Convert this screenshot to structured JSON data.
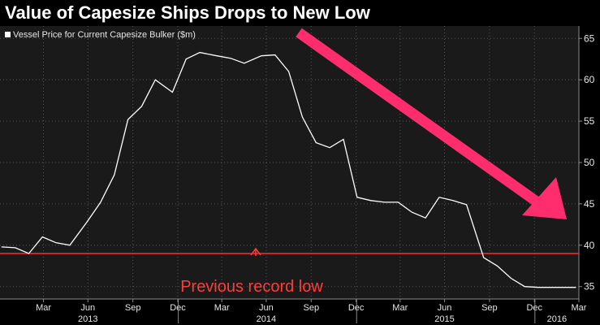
{
  "title": "Value of Capesize Ships Drops to New Low",
  "colors": {
    "background": "#000000",
    "plot_bg": "#1a1a1a",
    "line": "#ffffff",
    "record_line": "#ff2a2a",
    "arrow": "#ff2d6e",
    "text": "#e6e6e6"
  },
  "chart_data": {
    "type": "line",
    "title": "Value of Capesize Ships Drops to New Low",
    "legend": "Vessel Price for Current Capesize Bulker ($m)",
    "legend_position": "top-left",
    "ylim": [
      33.5,
      66.5
    ],
    "yticks": [
      35,
      40,
      45,
      50,
      55,
      60,
      65
    ],
    "y_axis_side": "right",
    "xlim": [
      "2013-01-01",
      "2016-03-31"
    ],
    "xticks": [
      {
        "label": "Mar",
        "date": "2013-03-31"
      },
      {
        "label": "Jun",
        "date": "2013-06-30"
      },
      {
        "label": "Sep",
        "date": "2013-09-30"
      },
      {
        "label": "Dec",
        "date": "2013-12-31"
      },
      {
        "label": "Mar",
        "date": "2014-03-31"
      },
      {
        "label": "Jun",
        "date": "2014-06-30"
      },
      {
        "label": "Sep",
        "date": "2014-09-30"
      },
      {
        "label": "Dec",
        "date": "2014-12-31"
      },
      {
        "label": "Mar",
        "date": "2015-03-31"
      },
      {
        "label": "Jun",
        "date": "2015-06-30"
      },
      {
        "label": "Sep",
        "date": "2015-09-30"
      },
      {
        "label": "Dec",
        "date": "2015-12-31"
      },
      {
        "label": "Mar",
        "date": "2016-03-31"
      }
    ],
    "years": [
      {
        "label": "2013",
        "date": "2013-06-30"
      },
      {
        "label": "2014",
        "date": "2014-06-30"
      },
      {
        "label": "2015",
        "date": "2015-06-30"
      },
      {
        "label": "2016",
        "date": "2016-02-15"
      }
    ],
    "series": [
      {
        "name": "Vessel Price for Current Capesize Bulker ($m)",
        "x": [
          "2013-01-04",
          "2013-02-01",
          "2013-03-01",
          "2013-03-29",
          "2013-04-26",
          "2013-05-24",
          "2013-06-28",
          "2013-07-26",
          "2013-08-23",
          "2013-09-20",
          "2013-10-18",
          "2013-11-15",
          "2013-12-20",
          "2014-01-17",
          "2014-02-14",
          "2014-03-21",
          "2014-04-18",
          "2014-05-16",
          "2014-06-20",
          "2014-07-18",
          "2014-08-15",
          "2014-09-12",
          "2014-10-10",
          "2014-11-07",
          "2014-12-05",
          "2015-01-02",
          "2015-01-30",
          "2015-02-27",
          "2015-03-27",
          "2015-04-24",
          "2015-05-22",
          "2015-06-19",
          "2015-07-17",
          "2015-08-14",
          "2015-09-18",
          "2015-10-16",
          "2015-11-13",
          "2015-12-11",
          "2016-01-08",
          "2016-02-05",
          "2016-03-04",
          "2016-03-25"
        ],
        "y": [
          39.8,
          39.7,
          39.0,
          41.0,
          40.3,
          40.0,
          42.8,
          45.2,
          48.5,
          55.2,
          56.8,
          60.0,
          58.5,
          62.5,
          63.3,
          62.9,
          62.6,
          62.0,
          62.9,
          63.0,
          61.0,
          55.5,
          52.4,
          51.8,
          52.8,
          45.8,
          45.4,
          45.2,
          45.2,
          44.0,
          43.3,
          45.8,
          45.4,
          44.9,
          38.5,
          37.5,
          36.0,
          35.0,
          34.9,
          34.9,
          34.9,
          34.9
        ]
      }
    ],
    "reference_line": {
      "y": 39.0,
      "label": "Previous record low"
    },
    "annotation": "Previous record low"
  }
}
